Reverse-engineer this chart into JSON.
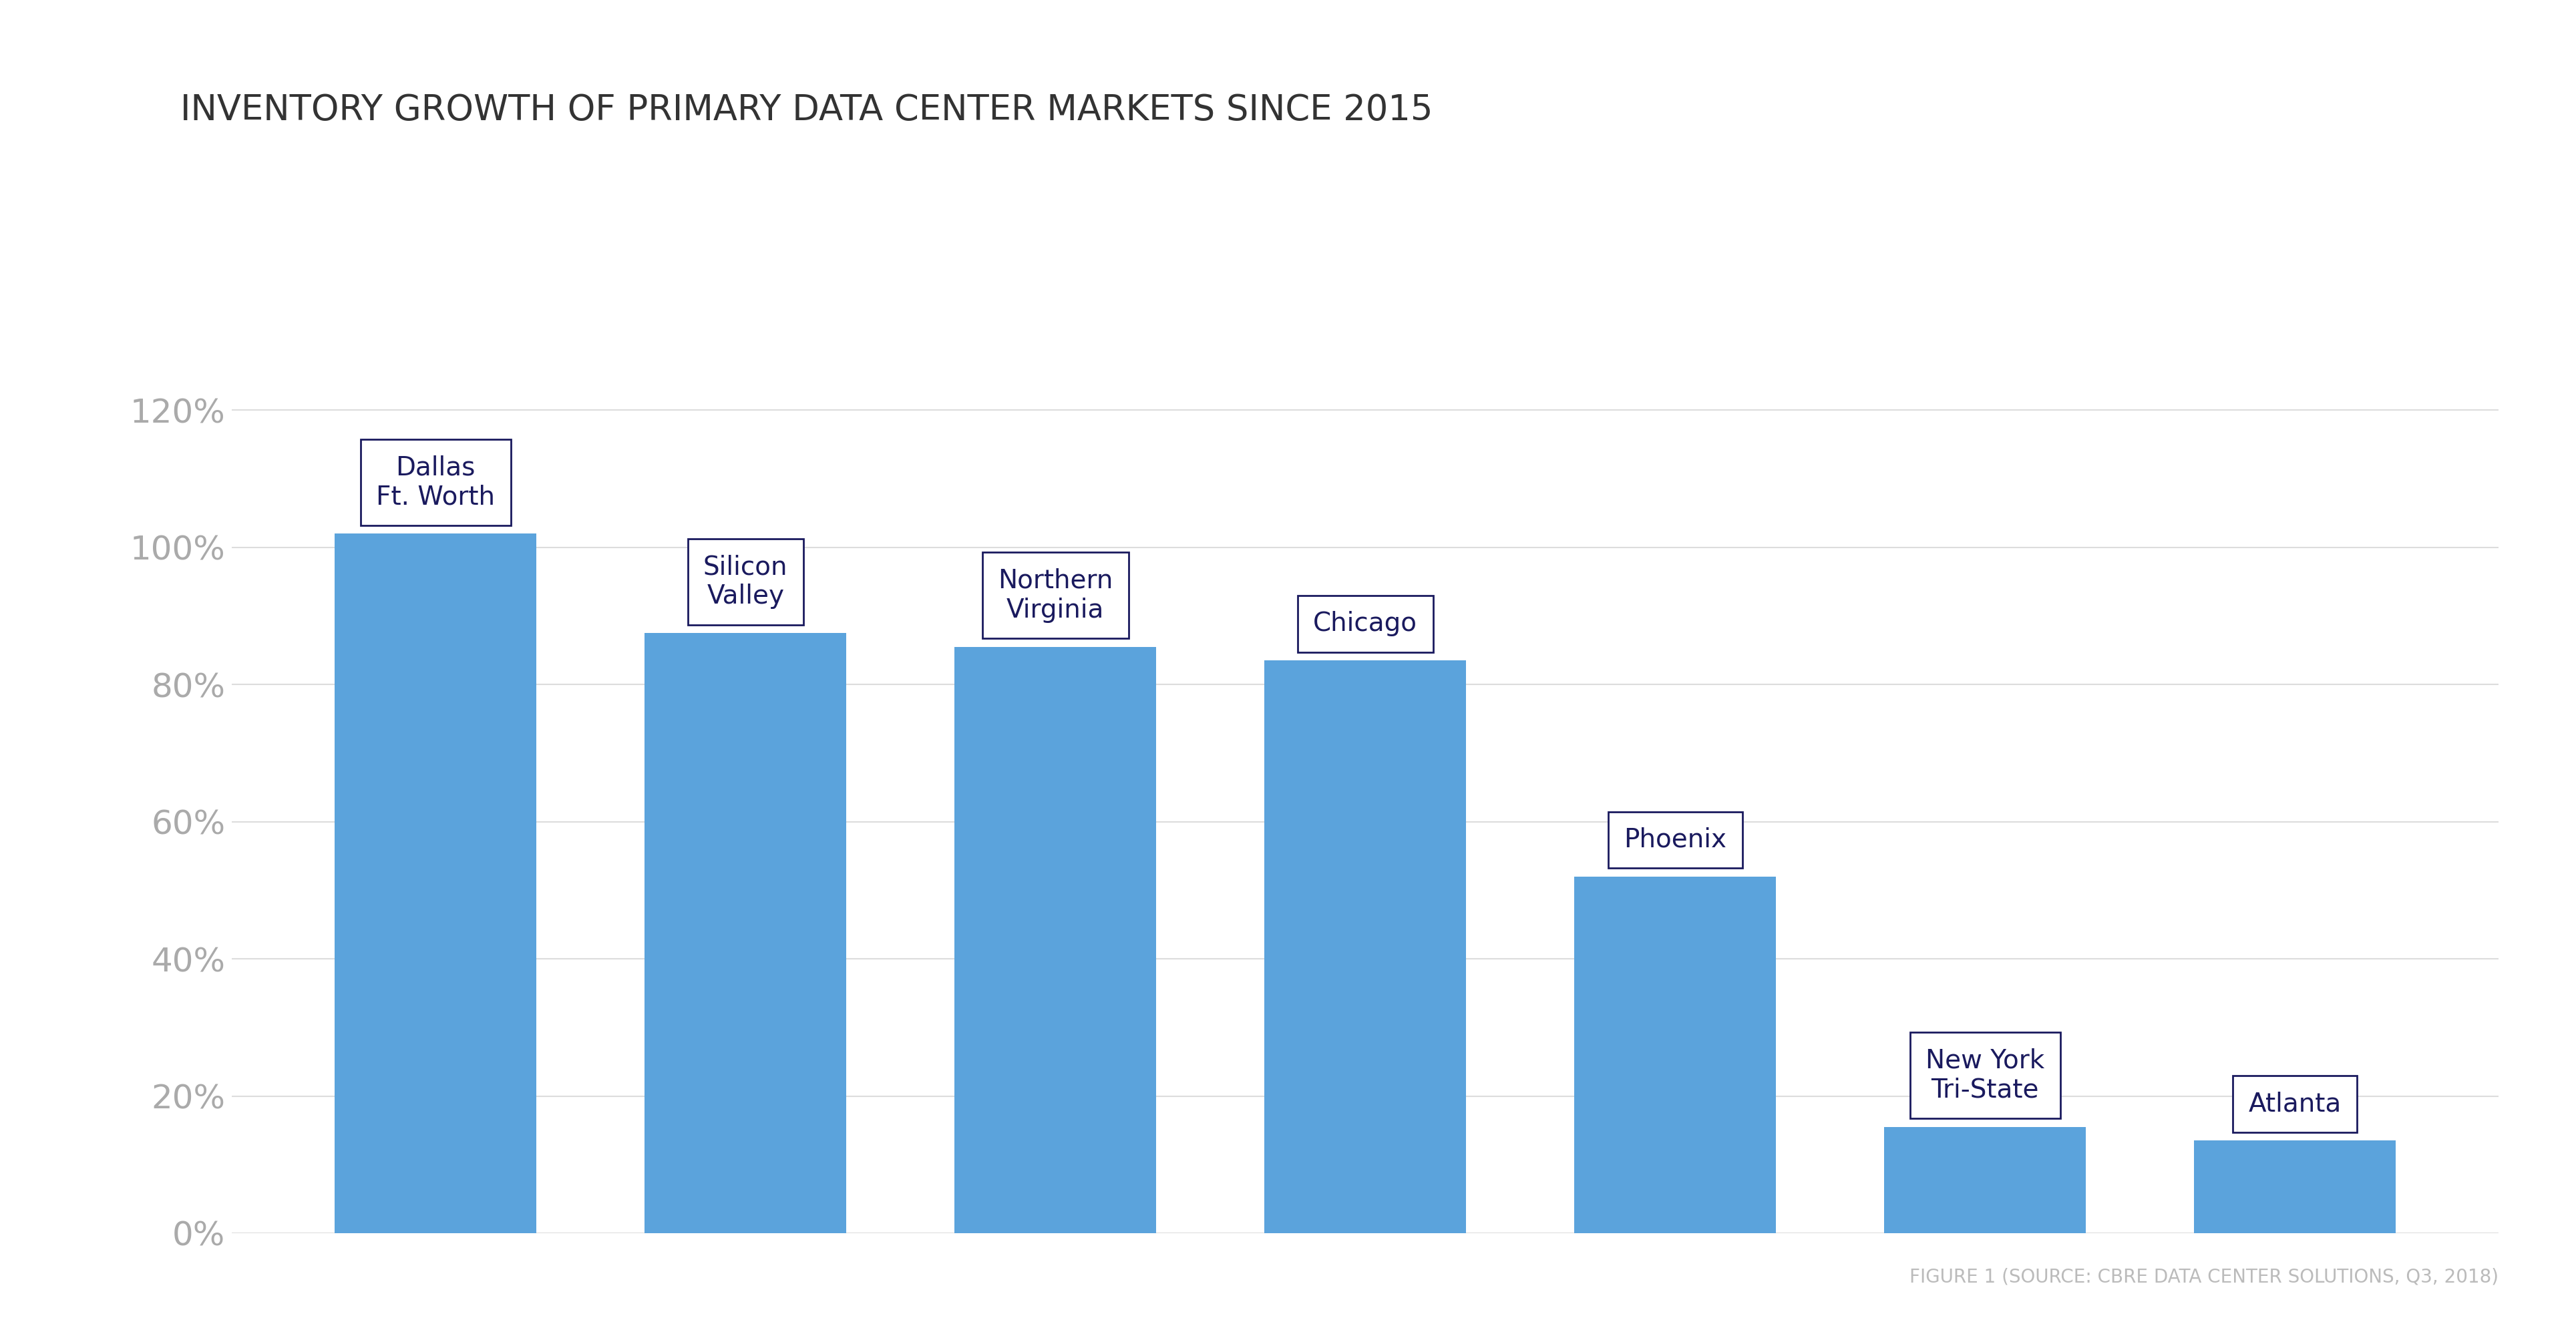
{
  "title": "INVENTORY GROWTH OF PRIMARY DATA CENTER MARKETS SINCE 2015",
  "categories": [
    "Dallas\nFt. Worth",
    "Silicon\nValley",
    "Northern\nVirginia",
    "Chicago",
    "Phoenix",
    "New York\nTri-State",
    "Atlanta"
  ],
  "values": [
    1.02,
    0.875,
    0.855,
    0.835,
    0.52,
    0.155,
    0.135
  ],
  "bar_color": "#5BA3DC",
  "background_color": "#FFFFFF",
  "yticks": [
    0,
    0.2,
    0.4,
    0.6,
    0.8,
    1.0,
    1.2
  ],
  "ytick_labels": [
    "0%",
    "20%",
    "40%",
    "60%",
    "80%",
    "100%",
    "120%"
  ],
  "ylim": [
    0,
    1.45
  ],
  "grid_color": "#DDDDDD",
  "title_color": "#333333",
  "tick_color": "#AAAAAA",
  "label_font_color": "#1a1a5e",
  "source_text": "FIGURE 1 (SOURCE: CBRE DATA CENTER SOLUTIONS, Q3, 2018)",
  "source_color": "#BBBBBB",
  "title_fontsize": 38,
  "label_fontsize": 28,
  "source_fontsize": 20,
  "tick_fontsize": 36,
  "annotation_box_color": "#FFFFFF",
  "annotation_box_edge": "#1a1a5e"
}
